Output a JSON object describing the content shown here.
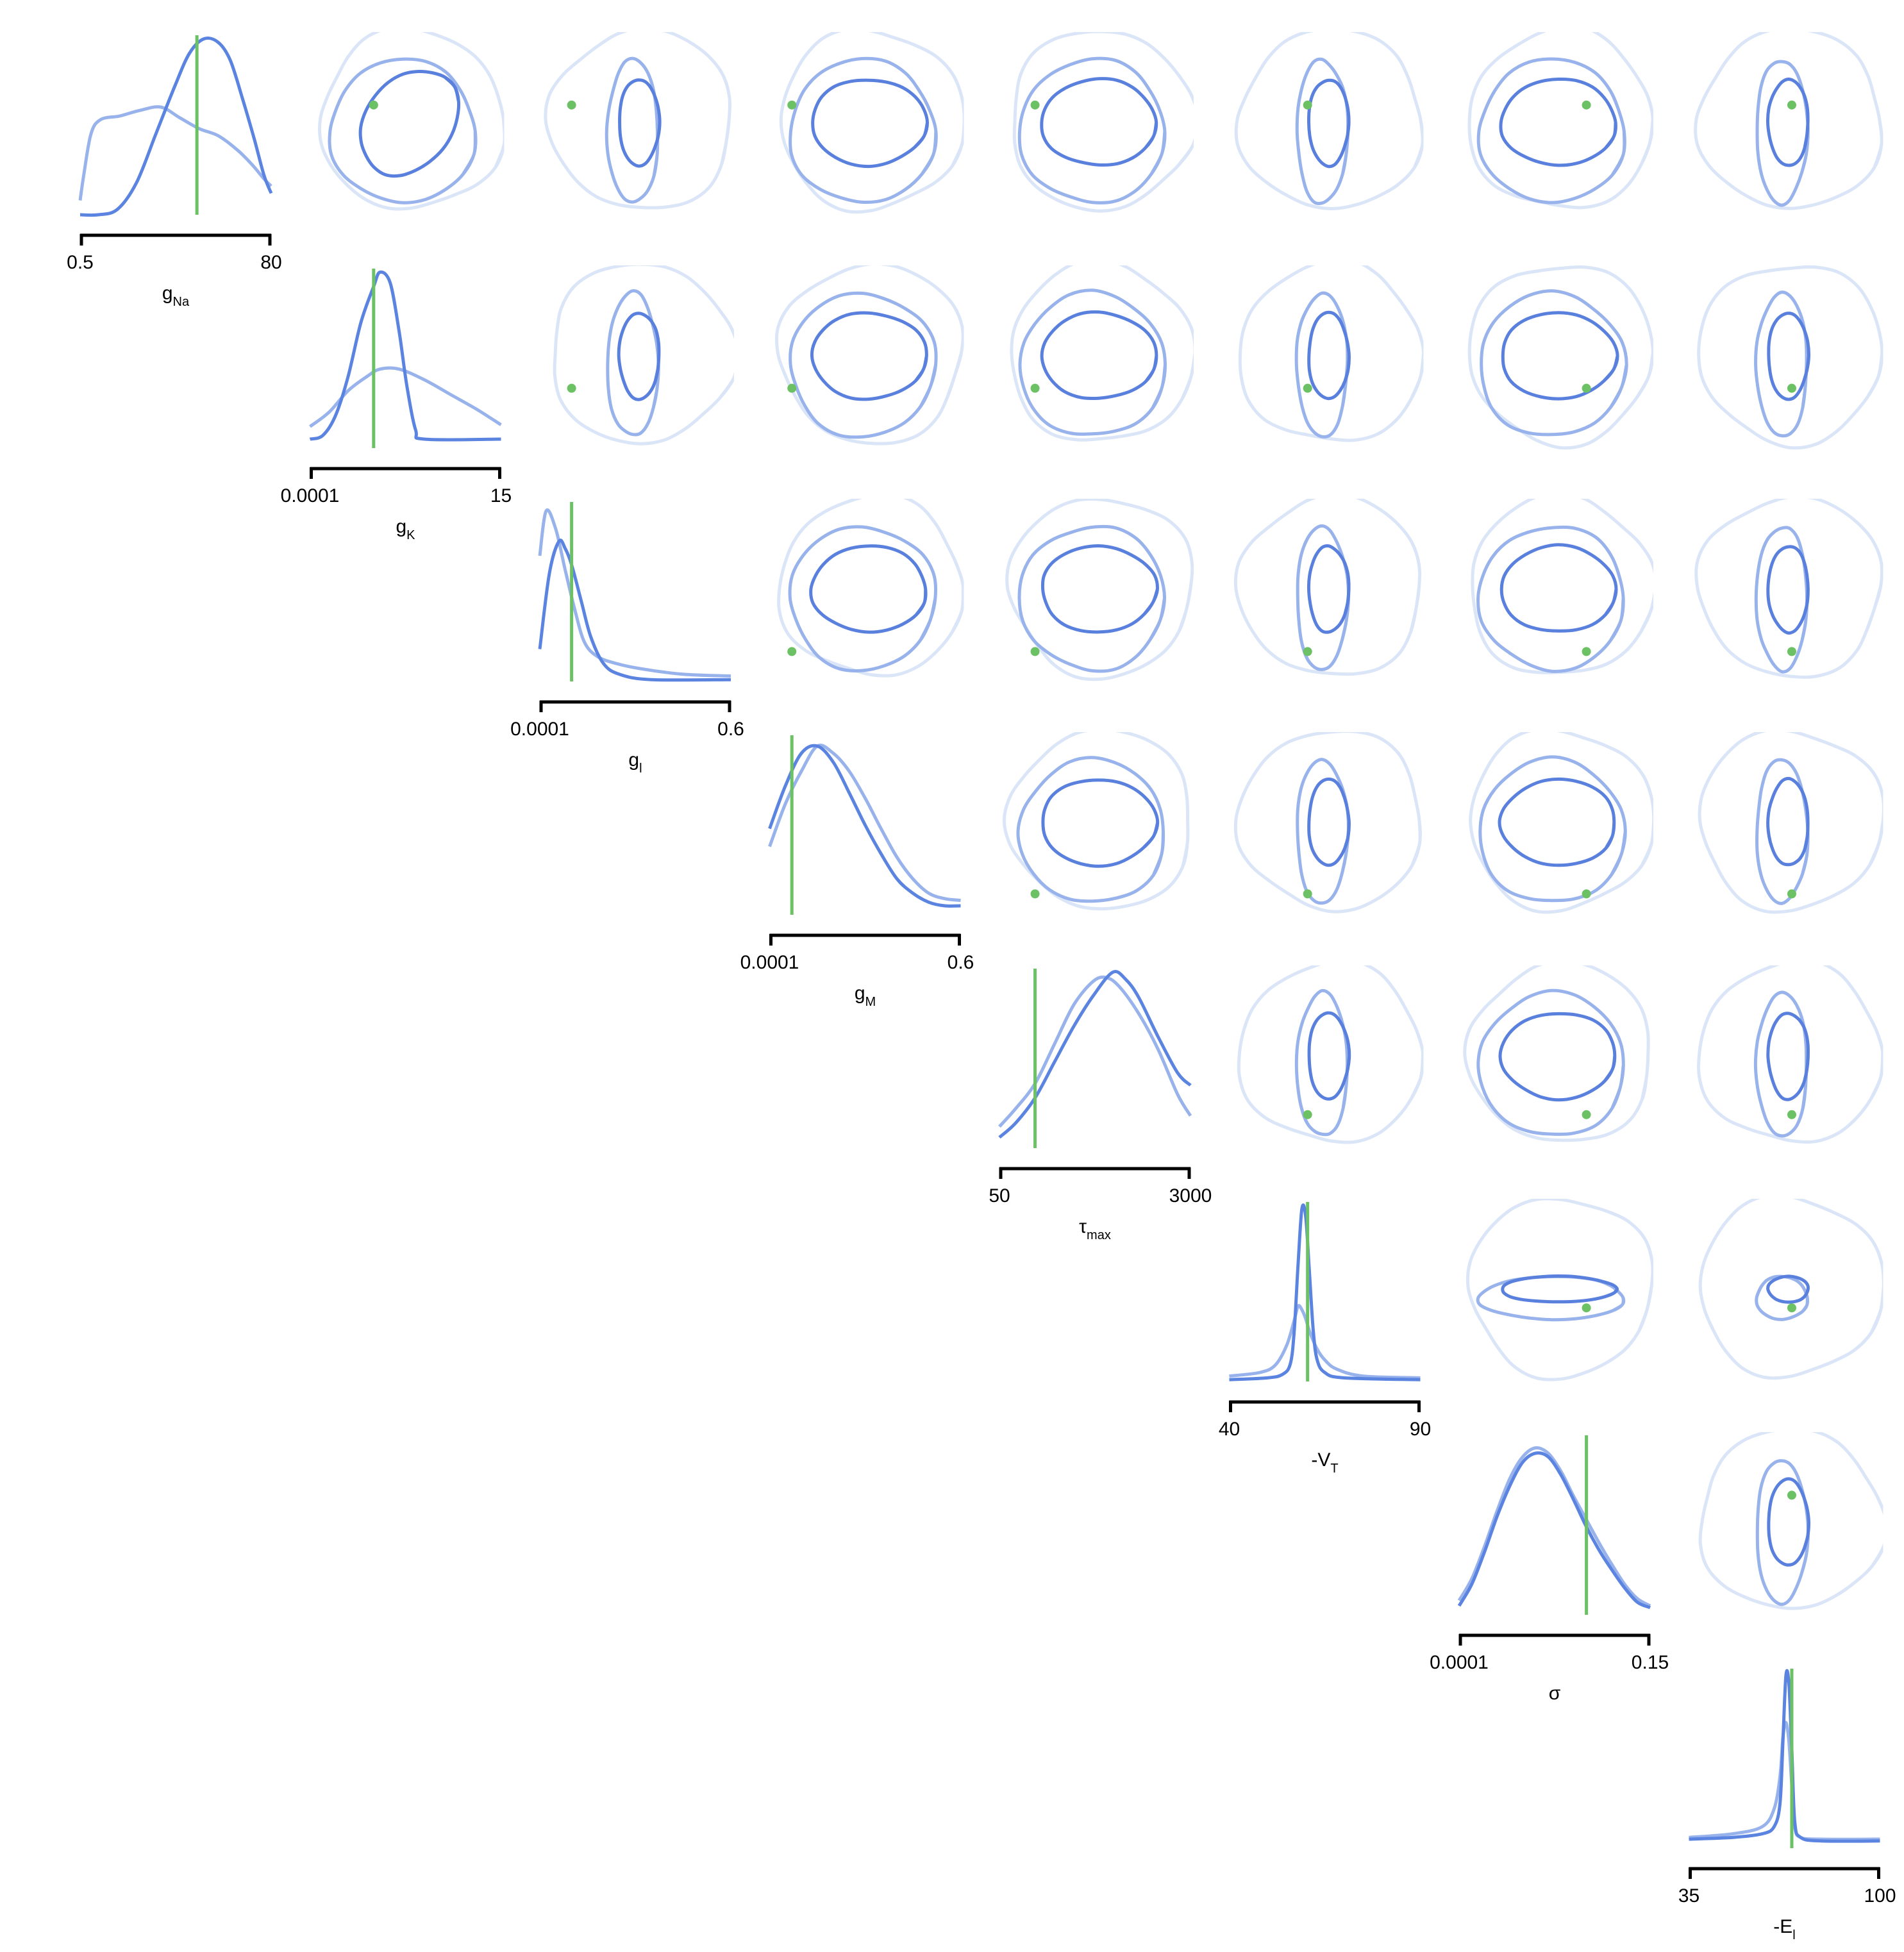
{
  "chart_data": {
    "type": "pairplot",
    "colors": {
      "marginal_dark": "#5b84e1",
      "marginal_light": "#98b2ec",
      "contour_dark": "#5a80de",
      "contour_mid": "#98b2ec",
      "contour_faint": "#dbe5f8",
      "truth": "#6cc164",
      "axis": "#000000"
    },
    "parameters": [
      {
        "name": "g",
        "sub": "Na",
        "min": "0.5",
        "max": "80",
        "min_v": 0.5,
        "max_v": 80,
        "true_value": 49.1,
        "marginal_dark": [
          [
            0.5,
            0.0
          ],
          [
            8,
            0.0
          ],
          [
            16,
            0.03
          ],
          [
            24,
            0.18
          ],
          [
            32,
            0.45
          ],
          [
            40,
            0.72
          ],
          [
            46,
            0.9
          ],
          [
            52,
            0.98
          ],
          [
            58,
            0.96
          ],
          [
            63,
            0.86
          ],
          [
            68,
            0.65
          ],
          [
            73,
            0.42
          ],
          [
            77,
            0.22
          ],
          [
            80,
            0.12
          ]
        ],
        "marginal_light": [
          [
            0.5,
            0.08
          ],
          [
            2,
            0.22
          ],
          [
            5,
            0.45
          ],
          [
            9,
            0.53
          ],
          [
            17,
            0.55
          ],
          [
            25,
            0.58
          ],
          [
            34,
            0.6
          ],
          [
            42,
            0.54
          ],
          [
            50,
            0.48
          ],
          [
            58,
            0.44
          ],
          [
            66,
            0.36
          ],
          [
            72,
            0.28
          ],
          [
            77,
            0.2
          ],
          [
            80,
            0.16
          ]
        ]
      },
      {
        "name": "g",
        "sub": "K",
        "min": "0.0001",
        "max": "15",
        "min_v": 0.0001,
        "max_v": 15,
        "true_value": 5.0,
        "marginal_dark": [
          [
            0.0001,
            0.05
          ],
          [
            1,
            0.07
          ],
          [
            2,
            0.18
          ],
          [
            3,
            0.4
          ],
          [
            4,
            0.7
          ],
          [
            5,
            0.9
          ],
          [
            5.5,
            0.98
          ],
          [
            6.3,
            0.92
          ],
          [
            7,
            0.65
          ],
          [
            7.6,
            0.35
          ],
          [
            8.3,
            0.1
          ],
          [
            9,
            0.05
          ],
          [
            15,
            0.05
          ]
        ],
        "marginal_light": [
          [
            0.0001,
            0.12
          ],
          [
            1.5,
            0.2
          ],
          [
            3,
            0.32
          ],
          [
            4.5,
            0.4
          ],
          [
            5.5,
            0.44
          ],
          [
            7,
            0.44
          ],
          [
            9,
            0.38
          ],
          [
            11,
            0.3
          ],
          [
            13,
            0.22
          ],
          [
            15,
            0.13
          ]
        ]
      },
      {
        "name": "g",
        "sub": "l",
        "min": "0.0001",
        "max": "0.6",
        "min_v": 0.0001,
        "max_v": 0.6,
        "true_value": 0.1,
        "marginal_dark": [
          [
            0.0001,
            0.18
          ],
          [
            0.03,
            0.6
          ],
          [
            0.06,
            0.78
          ],
          [
            0.08,
            0.74
          ],
          [
            0.1,
            0.65
          ],
          [
            0.13,
            0.45
          ],
          [
            0.16,
            0.25
          ],
          [
            0.2,
            0.1
          ],
          [
            0.25,
            0.04
          ],
          [
            0.35,
            0.01
          ],
          [
            0.6,
            0.01
          ]
        ],
        "marginal_light": [
          [
            0.0001,
            0.7
          ],
          [
            0.02,
            0.95
          ],
          [
            0.05,
            0.85
          ],
          [
            0.08,
            0.62
          ],
          [
            0.11,
            0.4
          ],
          [
            0.14,
            0.22
          ],
          [
            0.18,
            0.14
          ],
          [
            0.24,
            0.1
          ],
          [
            0.32,
            0.07
          ],
          [
            0.45,
            0.04
          ],
          [
            0.6,
            0.03
          ]
        ]
      },
      {
        "name": "g",
        "sub": "M",
        "min": "0.0001",
        "max": "0.6",
        "min_v": 0.0001,
        "max_v": 0.6,
        "true_value": 0.07,
        "marginal_dark": [
          [
            0.0001,
            0.48
          ],
          [
            0.05,
            0.72
          ],
          [
            0.1,
            0.9
          ],
          [
            0.15,
            0.94
          ],
          [
            0.2,
            0.85
          ],
          [
            0.25,
            0.68
          ],
          [
            0.3,
            0.5
          ],
          [
            0.35,
            0.34
          ],
          [
            0.4,
            0.2
          ],
          [
            0.45,
            0.12
          ],
          [
            0.5,
            0.07
          ],
          [
            0.55,
            0.05
          ],
          [
            0.6,
            0.05
          ]
        ],
        "marginal_light": [
          [
            0.0001,
            0.38
          ],
          [
            0.05,
            0.62
          ],
          [
            0.1,
            0.8
          ],
          [
            0.15,
            0.94
          ],
          [
            0.2,
            0.9
          ],
          [
            0.25,
            0.8
          ],
          [
            0.3,
            0.65
          ],
          [
            0.35,
            0.48
          ],
          [
            0.4,
            0.32
          ],
          [
            0.45,
            0.2
          ],
          [
            0.5,
            0.12
          ],
          [
            0.55,
            0.09
          ],
          [
            0.6,
            0.08
          ]
        ]
      },
      {
        "name": "τ",
        "sub": "max",
        "min": "50",
        "max": "3000",
        "min_v": 50,
        "max_v": 3000,
        "true_value": 600,
        "marginal_dark": [
          [
            50,
            0.06
          ],
          [
            300,
            0.14
          ],
          [
            600,
            0.28
          ],
          [
            900,
            0.48
          ],
          [
            1200,
            0.68
          ],
          [
            1500,
            0.85
          ],
          [
            1800,
            0.98
          ],
          [
            2000,
            0.94
          ],
          [
            2200,
            0.84
          ],
          [
            2500,
            0.62
          ],
          [
            2800,
            0.42
          ],
          [
            3000,
            0.35
          ]
        ],
        "marginal_light": [
          [
            50,
            0.12
          ],
          [
            300,
            0.22
          ],
          [
            600,
            0.36
          ],
          [
            900,
            0.58
          ],
          [
            1200,
            0.8
          ],
          [
            1500,
            0.93
          ],
          [
            1700,
            0.95
          ],
          [
            1900,
            0.9
          ],
          [
            2200,
            0.75
          ],
          [
            2500,
            0.55
          ],
          [
            2800,
            0.3
          ],
          [
            3000,
            0.18
          ]
        ]
      },
      {
        "name": "-V",
        "sub": "T",
        "min": "40",
        "max": "90",
        "min_v": 40,
        "max_v": 90,
        "true_value": 60.5,
        "marginal_dark": [
          [
            40,
            0.01
          ],
          [
            50,
            0.02
          ],
          [
            54,
            0.04
          ],
          [
            56,
            0.1
          ],
          [
            57,
            0.28
          ],
          [
            58,
            0.65
          ],
          [
            59,
            0.96
          ],
          [
            60,
            0.92
          ],
          [
            61,
            0.6
          ],
          [
            62,
            0.28
          ],
          [
            63,
            0.12
          ],
          [
            65,
            0.05
          ],
          [
            70,
            0.02
          ],
          [
            90,
            0.01
          ]
        ],
        "marginal_light": [
          [
            40,
            0.03
          ],
          [
            48,
            0.05
          ],
          [
            52,
            0.09
          ],
          [
            55,
            0.2
          ],
          [
            57,
            0.34
          ],
          [
            58,
            0.42
          ],
          [
            59,
            0.4
          ],
          [
            60,
            0.35
          ],
          [
            61,
            0.28
          ],
          [
            63,
            0.18
          ],
          [
            65,
            0.12
          ],
          [
            68,
            0.07
          ],
          [
            75,
            0.03
          ],
          [
            90,
            0.02
          ]
        ]
      },
      {
        "name": "σ",
        "sub": "",
        "min": "0.0001",
        "max": "0.15",
        "min_v": 0.0001,
        "max_v": 0.15,
        "true_value": 0.1,
        "marginal_dark": [
          [
            0.0001,
            0.05
          ],
          [
            0.01,
            0.17
          ],
          [
            0.02,
            0.35
          ],
          [
            0.03,
            0.55
          ],
          [
            0.04,
            0.72
          ],
          [
            0.05,
            0.85
          ],
          [
            0.06,
            0.9
          ],
          [
            0.07,
            0.88
          ],
          [
            0.08,
            0.78
          ],
          [
            0.09,
            0.64
          ],
          [
            0.1,
            0.49
          ],
          [
            0.11,
            0.36
          ],
          [
            0.12,
            0.25
          ],
          [
            0.13,
            0.15
          ],
          [
            0.14,
            0.07
          ],
          [
            0.15,
            0.04
          ]
        ],
        "marginal_light": [
          [
            0.0001,
            0.08
          ],
          [
            0.01,
            0.2
          ],
          [
            0.02,
            0.38
          ],
          [
            0.03,
            0.58
          ],
          [
            0.04,
            0.76
          ],
          [
            0.05,
            0.88
          ],
          [
            0.06,
            0.93
          ],
          [
            0.07,
            0.9
          ],
          [
            0.08,
            0.8
          ],
          [
            0.09,
            0.66
          ],
          [
            0.1,
            0.53
          ],
          [
            0.11,
            0.4
          ],
          [
            0.12,
            0.28
          ],
          [
            0.13,
            0.17
          ],
          [
            0.14,
            0.09
          ],
          [
            0.15,
            0.05
          ]
        ]
      },
      {
        "name": "-E",
        "sub": "l",
        "min": "35",
        "max": "100",
        "min_v": 35,
        "max_v": 100,
        "true_value": 70,
        "marginal_dark": [
          [
            35,
            0.05
          ],
          [
            50,
            0.06
          ],
          [
            60,
            0.08
          ],
          [
            64,
            0.12
          ],
          [
            66,
            0.25
          ],
          [
            67,
            0.6
          ],
          [
            68,
            0.96
          ],
          [
            69,
            0.92
          ],
          [
            70,
            0.55
          ],
          [
            71,
            0.15
          ],
          [
            73,
            0.06
          ],
          [
            80,
            0.04
          ],
          [
            100,
            0.04
          ]
        ],
        "marginal_light": [
          [
            35,
            0.06
          ],
          [
            50,
            0.08
          ],
          [
            60,
            0.12
          ],
          [
            64,
            0.22
          ],
          [
            66,
            0.4
          ],
          [
            67,
            0.62
          ],
          [
            68,
            0.7
          ],
          [
            69,
            0.6
          ],
          [
            70,
            0.35
          ],
          [
            71,
            0.12
          ],
          [
            73,
            0.06
          ],
          [
            80,
            0.05
          ],
          [
            100,
            0.05
          ]
        ]
      }
    ]
  }
}
